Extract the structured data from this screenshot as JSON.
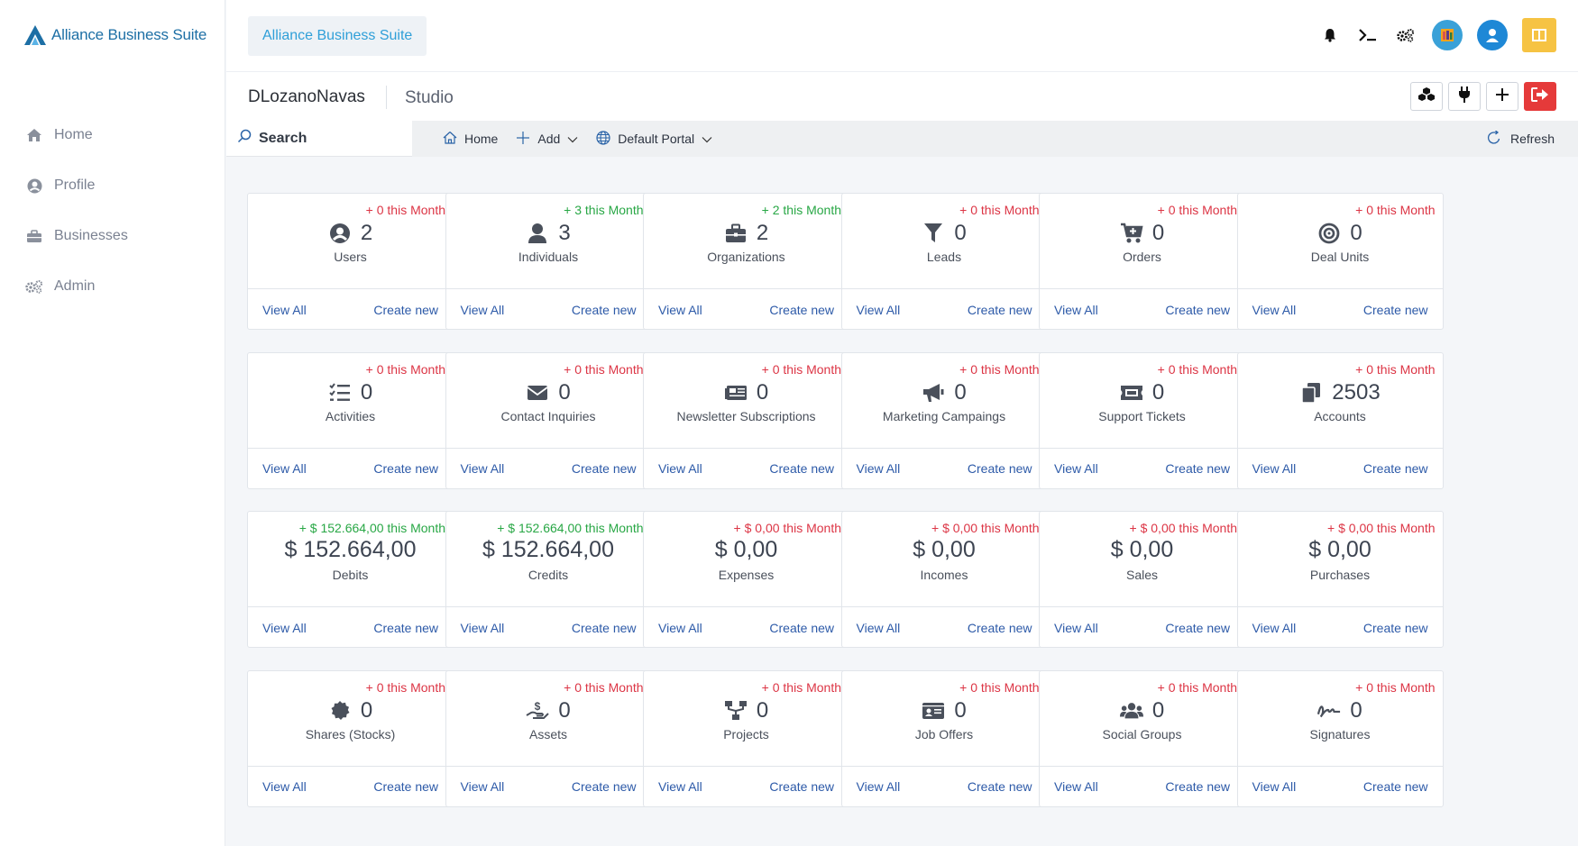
{
  "sidebar": {
    "logo_text": "Alliance Business Suite",
    "items": [
      {
        "label": "Home",
        "icon": "home-icon"
      },
      {
        "label": "Profile",
        "icon": "user-circle-icon"
      },
      {
        "label": "Businesses",
        "icon": "briefcase-icon"
      },
      {
        "label": "Admin",
        "icon": "gears-icon"
      }
    ]
  },
  "topbar": {
    "brand_chip": "Alliance Business Suite",
    "icons": [
      "bell-icon",
      "terminal-icon",
      "gears-icon",
      "app-icon",
      "avatar-icon",
      "grid-icon"
    ]
  },
  "subhead": {
    "user": "DLozanoNavas",
    "section": "Studio",
    "actions": [
      "cubes-icon",
      "plug-icon",
      "plus-icon",
      "sign-out-icon"
    ]
  },
  "toolbar": {
    "search_label": "Search",
    "home": "Home",
    "add": "Add",
    "portal": "Default Portal",
    "refresh": "Refresh"
  },
  "card_links": {
    "view_all": "View All",
    "create_new": "Create new"
  },
  "cards": [
    {
      "delta": "+ 0 this Month",
      "trend": "neg",
      "value": "2",
      "label": "Users",
      "icon": "user-circle-icon"
    },
    {
      "delta": "+ 3 this Month",
      "trend": "pos",
      "value": "3",
      "label": "Individuals",
      "icon": "user-icon"
    },
    {
      "delta": "+ 2 this Month",
      "trend": "pos",
      "value": "2",
      "label": "Organizations",
      "icon": "briefcase-icon"
    },
    {
      "delta": "+ 0 this Month",
      "trend": "neg",
      "value": "0",
      "label": "Leads",
      "icon": "filter-icon"
    },
    {
      "delta": "+ 0 this Month",
      "trend": "neg",
      "value": "0",
      "label": "Orders",
      "icon": "cart-icon"
    },
    {
      "delta": "+ 0 this Month",
      "trend": "neg",
      "value": "0",
      "label": "Deal Units",
      "icon": "target-icon"
    },
    {
      "delta": "+ 0 this Month",
      "trend": "neg",
      "value": "0",
      "label": "Activities",
      "icon": "tasks-icon"
    },
    {
      "delta": "+ 0 this Month",
      "trend": "neg",
      "value": "0",
      "label": "Contact Inquiries",
      "icon": "envelope-icon"
    },
    {
      "delta": "+ 0 this Month",
      "trend": "neg",
      "value": "0",
      "label": "Newsletter Subscriptions",
      "icon": "newspaper-icon"
    },
    {
      "delta": "+ 0 this Month",
      "trend": "neg",
      "value": "0",
      "label": "Marketing Campaings",
      "icon": "megaphone-icon"
    },
    {
      "delta": "+ 0 this Month",
      "trend": "neg",
      "value": "0",
      "label": "Support Tickets",
      "icon": "ticket-icon"
    },
    {
      "delta": "+ 0 this Month",
      "trend": "neg",
      "value": "2503",
      "label": "Accounts",
      "icon": "copy-icon"
    },
    {
      "delta": "+ $ 152.664,00 this Month",
      "trend": "pos",
      "value": "$ 152.664,00",
      "label": "Debits",
      "icon": ""
    },
    {
      "delta": "+ $ 152.664,00 this Month",
      "trend": "pos",
      "value": "$ 152.664,00",
      "label": "Credits",
      "icon": ""
    },
    {
      "delta": "+ $ 0,00 this Month",
      "trend": "neg",
      "value": "$ 0,00",
      "label": "Expenses",
      "icon": ""
    },
    {
      "delta": "+ $ 0,00 this Month",
      "trend": "neg",
      "value": "$ 0,00",
      "label": "Incomes",
      "icon": ""
    },
    {
      "delta": "+ $ 0,00 this Month",
      "trend": "neg",
      "value": "$ 0,00",
      "label": "Sales",
      "icon": ""
    },
    {
      "delta": "+ $ 0,00 this Month",
      "trend": "neg",
      "value": "$ 0,00",
      "label": "Purchases",
      "icon": ""
    },
    {
      "delta": "+ 0 this Month",
      "trend": "neg",
      "value": "0",
      "label": "Shares (Stocks)",
      "icon": "certificate-icon"
    },
    {
      "delta": "+ 0 this Month",
      "trend": "neg",
      "value": "0",
      "label": "Assets",
      "icon": "hand-dollar-icon"
    },
    {
      "delta": "+ 0 this Month",
      "trend": "neg",
      "value": "0",
      "label": "Projects",
      "icon": "sitemap-icon"
    },
    {
      "delta": "+ 0 this Month",
      "trend": "neg",
      "value": "0",
      "label": "Job Offers",
      "icon": "id-card-icon"
    },
    {
      "delta": "+ 0 this Month",
      "trend": "neg",
      "value": "0",
      "label": "Social Groups",
      "icon": "users-icon"
    },
    {
      "delta": "+ 0 this Month",
      "trend": "neg",
      "value": "0",
      "label": "Signatures",
      "icon": "signature-icon"
    }
  ],
  "colors": {
    "positive": "#28a745",
    "negative": "#dc3545",
    "link": "#2d5aa8",
    "brand": "#2f9fd8"
  }
}
